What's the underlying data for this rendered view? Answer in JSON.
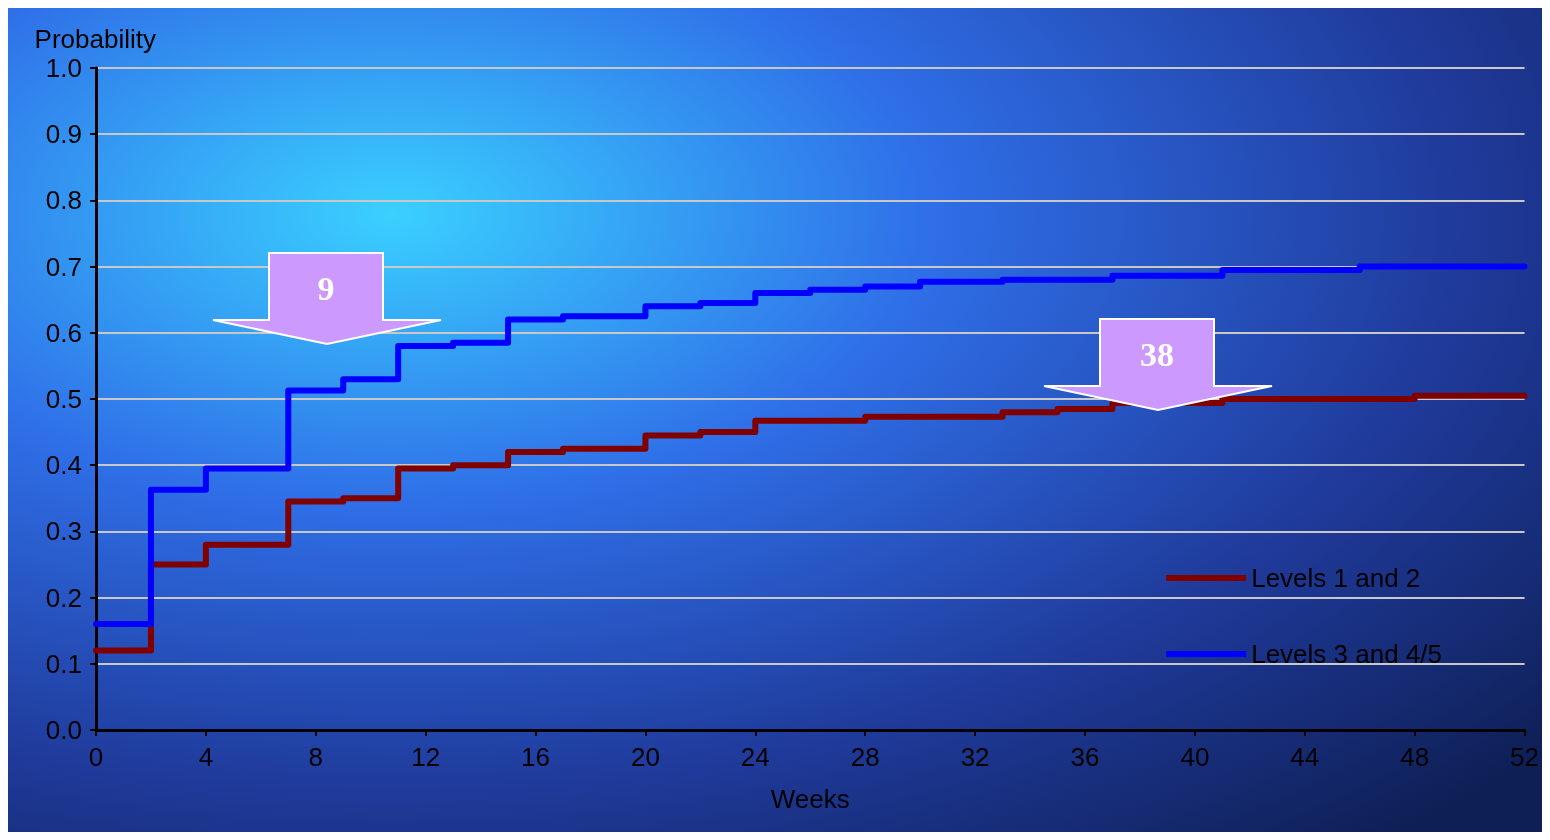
{
  "chart_data": {
    "type": "step",
    "ylabel": "Probability",
    "xlabel": "Weeks",
    "xlim": [
      0,
      52
    ],
    "xticks": [
      0,
      4,
      8,
      12,
      16,
      20,
      24,
      28,
      32,
      36,
      40,
      44,
      48,
      52
    ],
    "ylim": [
      0,
      1
    ],
    "yticks": [
      {
        "value": 0,
        "label": "0.0"
      },
      0.1,
      0.2,
      0.3,
      0.4,
      0.5,
      0.6,
      0.7,
      0.8,
      0.9,
      {
        "value": 1,
        "label": "1.0"
      }
    ],
    "grid": "y",
    "legend": "bottom right",
    "line_style": "solid",
    "marker": "none",
    "series": [
      {
        "name": "Levels 1 and 2",
        "color": "#800000",
        "x": [
          0,
          2,
          4,
          7,
          9,
          11,
          13,
          15,
          17,
          20,
          22,
          24,
          28,
          33,
          35,
          37,
          41,
          48,
          52
        ],
        "values": [
          0.12,
          0.25,
          0.28,
          0.345,
          0.35,
          0.395,
          0.4,
          0.42,
          0.425,
          0.445,
          0.45,
          0.467,
          0.473,
          0.48,
          0.485,
          0.494,
          0.5,
          0.505,
          0.505
        ]
      },
      {
        "name": "Levels 3 and 4/5",
        "color": "#0000ff",
        "x": [
          0,
          2,
          4,
          7,
          9,
          11,
          13,
          15,
          17,
          20,
          22,
          24,
          26,
          28,
          30,
          33,
          37,
          41,
          46,
          52
        ],
        "values": [
          0.16,
          0.363,
          0.395,
          0.513,
          0.53,
          0.58,
          0.585,
          0.62,
          0.625,
          0.64,
          0.645,
          0.66,
          0.665,
          0.67,
          0.677,
          0.68,
          0.686,
          0.695,
          0.7,
          0.7
        ]
      }
    ],
    "annotations": [
      "9",
      "38"
    ]
  }
}
